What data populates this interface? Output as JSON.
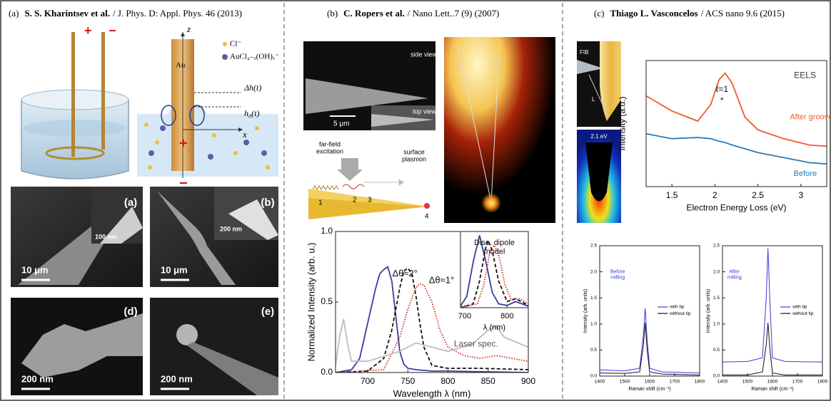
{
  "panels": [
    {
      "label": "(a)",
      "authors": "S. S. Kharintsev  et al.",
      "source": "/ J. Phys. D: Appl. Phys. 46 (2013)",
      "schematic": {
        "plus": "+",
        "minus": "−",
        "z": "z",
        "au": "Au",
        "cl": "Cl⁻",
        "complex": "AuCl₄₋ₓ(OH)ₓ⁻",
        "dh": "Δh(t)",
        "h0": "h₀(t)",
        "x": "x",
        "tip_plus": "+",
        "bottom_minus": "−"
      },
      "images": [
        {
          "label": "(a)",
          "inset_scale": "100 nm",
          "scale": "10 μm"
        },
        {
          "label": "(b)",
          "inset_scale": "200 nm",
          "scale": "10 μm"
        },
        {
          "label": "(d)",
          "scale": "200 nm"
        },
        {
          "label": "(e)",
          "scale": "200 nm"
        }
      ]
    },
    {
      "label": "(b)",
      "authors": "C. Ropers et al.",
      "source": "/ Nano Lett..7 (9) (2007)",
      "images": {
        "side": "side view",
        "top": "top view",
        "scale": "5 μm"
      },
      "schematic": {
        "excitation": [
          "far-field",
          "excitation"
        ],
        "plasmon": [
          "surface",
          "plasmon"
        ],
        "points": [
          "1",
          "2",
          "3",
          "4"
        ]
      }
    },
    {
      "label": "(c)",
      "authors": "Thiago L. Vasconcelos",
      "source": "/ ACS nano 9.6 (2015)",
      "images": {
        "fib": "FIB",
        "length": "L",
        "energy": "2.1 eV"
      }
    }
  ],
  "chart_data": [
    {
      "type": "line",
      "xlabel": "Wavelength λ (nm)",
      "ylabel": "Normalized Intensity (arb. u.)",
      "xlim": [
        660,
        900
      ],
      "ylim": [
        0,
        1.0
      ],
      "xticks": [
        700,
        750,
        800,
        850,
        900
      ],
      "yticks": [
        {
          "value": 0,
          "label": "0.0"
        },
        0.5,
        {
          "value": 1,
          "label": "1.0"
        }
      ],
      "legend": "inline",
      "annotations": [
        "Δθ≈2°",
        "Δθ≈1°"
      ],
      "series": [
        {
          "color": "#34409a",
          "style": "solid",
          "x": [
            660,
            680,
            690,
            700,
            710,
            715,
            720,
            725,
            730,
            735,
            740,
            745,
            750,
            760,
            780,
            800,
            900
          ],
          "values": [
            0,
            0.02,
            0.1,
            0.35,
            0.6,
            0.7,
            0.73,
            0.75,
            0.65,
            0.4,
            0.15,
            0.06,
            0.03,
            0.02,
            0.01,
            0.01,
            0
          ]
        },
        {
          "color": "#111111",
          "style": "dashed",
          "x": [
            660,
            700,
            720,
            730,
            740,
            745,
            750,
            755,
            760,
            765,
            770,
            780,
            800,
            840,
            900
          ],
          "values": [
            0,
            0.01,
            0.1,
            0.3,
            0.6,
            0.72,
            0.74,
            0.7,
            0.55,
            0.35,
            0.18,
            0.05,
            0.03,
            0.03,
            0.02
          ]
        },
        {
          "color": "#d42a1e",
          "style": "dotted",
          "x": [
            660,
            720,
            740,
            750,
            760,
            765,
            770,
            780,
            790,
            800,
            820,
            840,
            860,
            900
          ],
          "values": [
            0,
            0.02,
            0.25,
            0.45,
            0.6,
            0.63,
            0.62,
            0.5,
            0.3,
            0.18,
            0.12,
            0.1,
            0.12,
            0.08
          ]
        },
        {
          "name": "Laser spec.",
          "color": "#bdbdbd",
          "style": "solid",
          "x": [
            660,
            665,
            670,
            675,
            680,
            700,
            740,
            760,
            800,
            830,
            850,
            860,
            870,
            900
          ],
          "values": [
            0.05,
            0.25,
            0.38,
            0.2,
            0.08,
            0.08,
            0.15,
            0.21,
            0.15,
            0.2,
            0.3,
            0.33,
            0.25,
            0.18
          ]
        }
      ]
    },
    {
      "type": "line",
      "xlabel": "λ (nm)",
      "xlim": [
        690,
        850
      ],
      "ylim": [
        0,
        1
      ],
      "xticks": [
        700,
        800
      ],
      "legend": "inline",
      "annotations": [
        [
          "Disc. dipole",
          "model"
        ]
      ],
      "series": [
        {
          "color": "#34409a",
          "style": "solid",
          "x": [
            690,
            705,
            720,
            735,
            750,
            765,
            780,
            800,
            820,
            850
          ],
          "values": [
            0.02,
            0.15,
            0.6,
            0.95,
            0.6,
            0.2,
            0.05,
            0.03,
            0.08,
            0.02
          ]
        },
        {
          "color": "#111111",
          "style": "dashed",
          "x": [
            690,
            720,
            735,
            750,
            755,
            765,
            780,
            800,
            820,
            850
          ],
          "values": [
            0,
            0.05,
            0.35,
            0.8,
            0.88,
            0.75,
            0.35,
            0.08,
            0.12,
            0.03
          ]
        },
        {
          "color": "#d42a1e",
          "style": "dotted",
          "x": [
            690,
            730,
            745,
            760,
            770,
            780,
            795,
            810,
            830,
            850
          ],
          "values": [
            0,
            0.05,
            0.3,
            0.75,
            0.82,
            0.7,
            0.3,
            0.1,
            0.12,
            0.05
          ]
        }
      ]
    },
    {
      "type": "line",
      "xlabel": "Electron Energy Loss (eV)",
      "ylabel": "Intensity (a.u.)",
      "xlim": [
        1.2,
        3.3
      ],
      "ylim": [
        0,
        1
      ],
      "xticks": [
        1.5,
        2,
        2.5,
        3
      ],
      "legend": "inline",
      "annotations": [
        "EELS",
        "ℓ=1",
        "*"
      ],
      "series": [
        {
          "name": "After groove",
          "color": "#ee5b2b",
          "style": "solid",
          "x": [
            1.2,
            1.5,
            1.8,
            1.95,
            2.05,
            2.12,
            2.2,
            2.35,
            2.5,
            2.8,
            3.1,
            3.3
          ],
          "values": [
            0.72,
            0.6,
            0.52,
            0.65,
            0.85,
            0.9,
            0.82,
            0.55,
            0.45,
            0.38,
            0.33,
            0.32
          ]
        },
        {
          "name": "Before",
          "color": "#2a7ab9",
          "style": "solid",
          "x": [
            1.2,
            1.5,
            1.8,
            1.95,
            2.05,
            2.12,
            2.2,
            2.35,
            2.5,
            2.8,
            3.1,
            3.3
          ],
          "values": [
            0.42,
            0.38,
            0.39,
            0.38,
            0.36,
            0.35,
            0.33,
            0.3,
            0.27,
            0.23,
            0.19,
            0.18
          ]
        }
      ]
    },
    {
      "type": "line",
      "xlabel": "Raman shift (cm⁻¹)",
      "ylabel": "Intensity (arb. units)",
      "xlim": [
        1400,
        1800
      ],
      "ylim": [
        0,
        2.5
      ],
      "xticks": [
        1400,
        1500,
        1600,
        1700,
        1800
      ],
      "yticks": [
        {
          "value": 0,
          "label": "0.0"
        },
        0.5,
        {
          "value": 1,
          "label": "1.0"
        },
        1.5,
        {
          "value": 2,
          "label": "2.0"
        },
        2.5
      ],
      "legend": "center right",
      "annotations": [
        [
          "Before",
          "milling"
        ]
      ],
      "series": [
        {
          "name": "with tip",
          "color": "#3a3ae0",
          "style": "solid",
          "x": [
            1400,
            1500,
            1560,
            1575,
            1582,
            1590,
            1600,
            1650,
            1800
          ],
          "values": [
            0.12,
            0.1,
            0.15,
            0.8,
            1.3,
            0.7,
            0.15,
            0.08,
            0.06
          ]
        },
        {
          "name": "without tip",
          "color": "#111111",
          "style": "solid",
          "x": [
            1400,
            1500,
            1560,
            1575,
            1582,
            1590,
            1600,
            1650,
            1800
          ],
          "values": [
            0.06,
            0.05,
            0.08,
            0.6,
            1.02,
            0.5,
            0.08,
            0.04,
            0.02
          ]
        }
      ]
    },
    {
      "type": "line",
      "xlabel": "Raman shift (cm⁻¹)",
      "ylabel": "Intensity (arb. units)",
      "xlim": [
        1400,
        1800
      ],
      "ylim": [
        0,
        2.5
      ],
      "xticks": [
        1400,
        1500,
        1600,
        1700,
        1800
      ],
      "yticks": [
        {
          "value": 0,
          "label": "0.0"
        },
        0.5,
        {
          "value": 1,
          "label": "1.0"
        },
        1.5,
        {
          "value": 2,
          "label": "2.0"
        },
        2.5
      ],
      "legend": "center right",
      "annotations": [
        [
          "After",
          "milling"
        ]
      ],
      "series": [
        {
          "name": "with tip",
          "color": "#3a3ae0",
          "style": "solid",
          "x": [
            1400,
            1500,
            1560,
            1575,
            1582,
            1590,
            1600,
            1650,
            1800
          ],
          "values": [
            0.27,
            0.28,
            0.35,
            1.5,
            2.45,
            1.4,
            0.35,
            0.28,
            0.27
          ]
        },
        {
          "name": "without tip",
          "color": "#111111",
          "style": "solid",
          "x": [
            1400,
            1500,
            1560,
            1575,
            1582,
            1590,
            1600,
            1650,
            1800
          ],
          "values": [
            0.02,
            0.02,
            0.08,
            0.6,
            1.02,
            0.5,
            0.06,
            0.02,
            0.02
          ]
        }
      ]
    }
  ]
}
